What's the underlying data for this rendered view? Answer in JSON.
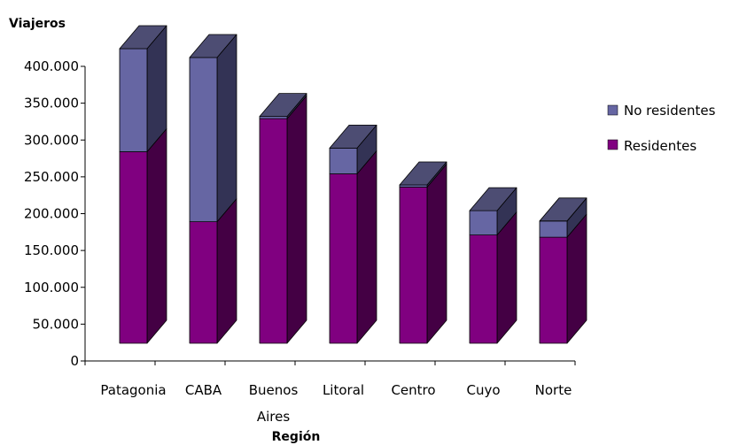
{
  "chart_data": {
    "type": "bar",
    "stacked": true,
    "style": "3d",
    "ylabel": "Viajeros",
    "xlabel": "Región",
    "categories": [
      "Patagonia",
      "CABA",
      "Buenos Aires",
      "Litoral",
      "Centro",
      "Cuyo",
      "Norte"
    ],
    "category_lines": [
      [
        "Patagonia"
      ],
      [
        "CABA"
      ],
      [
        "Buenos",
        "Aires"
      ],
      [
        "Litoral"
      ],
      [
        "Centro"
      ],
      [
        "Cuyo"
      ],
      [
        "Norte"
      ]
    ],
    "yticks": [
      "0",
      "50.000",
      "100.000",
      "150.000",
      "200.000",
      "250.000",
      "300.000",
      "350.000",
      "400.000"
    ],
    "ylim": [
      0,
      400000
    ],
    "series": [
      {
        "name": "Residentes",
        "values": [
          260000,
          165000,
          305000,
          230000,
          212000,
          147000,
          144000
        ],
        "color": "#800080"
      },
      {
        "name": "No residentes",
        "values": [
          140000,
          223000,
          3000,
          35000,
          3000,
          33000,
          22000
        ],
        "color": "#6666a3"
      }
    ],
    "legend": {
      "position": "right",
      "order": [
        "No residentes",
        "Residentes"
      ]
    },
    "grid": false
  }
}
